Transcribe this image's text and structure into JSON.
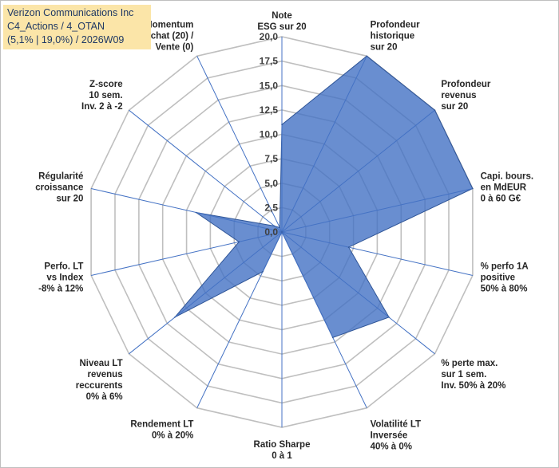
{
  "title": {
    "line1": "Verizon Communications Inc",
    "line2": "C4_Actions / 4_OTAN",
    "line3": "(5,1% | 19,0%) / 2026W09"
  },
  "colors": {
    "fill": "#4472c4",
    "grid": "#bfbfbf",
    "spoke": "#4472c4",
    "text": "#262626"
  },
  "chart_data": {
    "type": "radar",
    "rmin": 0,
    "rmax": 20,
    "ticks": [
      "0,0",
      "2,5",
      "5,0",
      "7,5",
      "10,0",
      "12,5",
      "15,0",
      "17,5",
      "20,0"
    ],
    "categories": [
      [
        "Note",
        "ESG sur 20"
      ],
      [
        "Profondeur",
        "historique",
        "sur 20"
      ],
      [
        "Profondeur",
        "revenus",
        "sur 20"
      ],
      [
        "Capi. bours.",
        "en MdEUR",
        "0 à 60 G€"
      ],
      [
        "% perfo 1A",
        "positive",
        "50% à 80%"
      ],
      [
        "% perte max.",
        "sur 1 sem.",
        "Inv. 50% à 20%"
      ],
      [
        "Volatilité LT",
        "Inversée",
        "40% à 0%"
      ],
      [
        "Ratio Sharpe",
        "0 à 1"
      ],
      [
        "Rendement LT",
        "0% à 20%"
      ],
      [
        "Niveau LT",
        "revenus",
        "reccurents",
        "0% à 6%"
      ],
      [
        "Perfo. LT",
        "vs Index",
        "-8% à 12%"
      ],
      [
        "Régularité",
        "croissance",
        "sur 20"
      ],
      [
        "Z-score",
        "10 sem.",
        "Inv. 2 à -2"
      ],
      [
        "Momentum",
        "Achat (20) /",
        "Vente (0)"
      ]
    ],
    "values": [
      11,
      20,
      20,
      20,
      7,
      14,
      12,
      0,
      4.5,
      14,
      4.5,
      9,
      1,
      0.5
    ]
  }
}
